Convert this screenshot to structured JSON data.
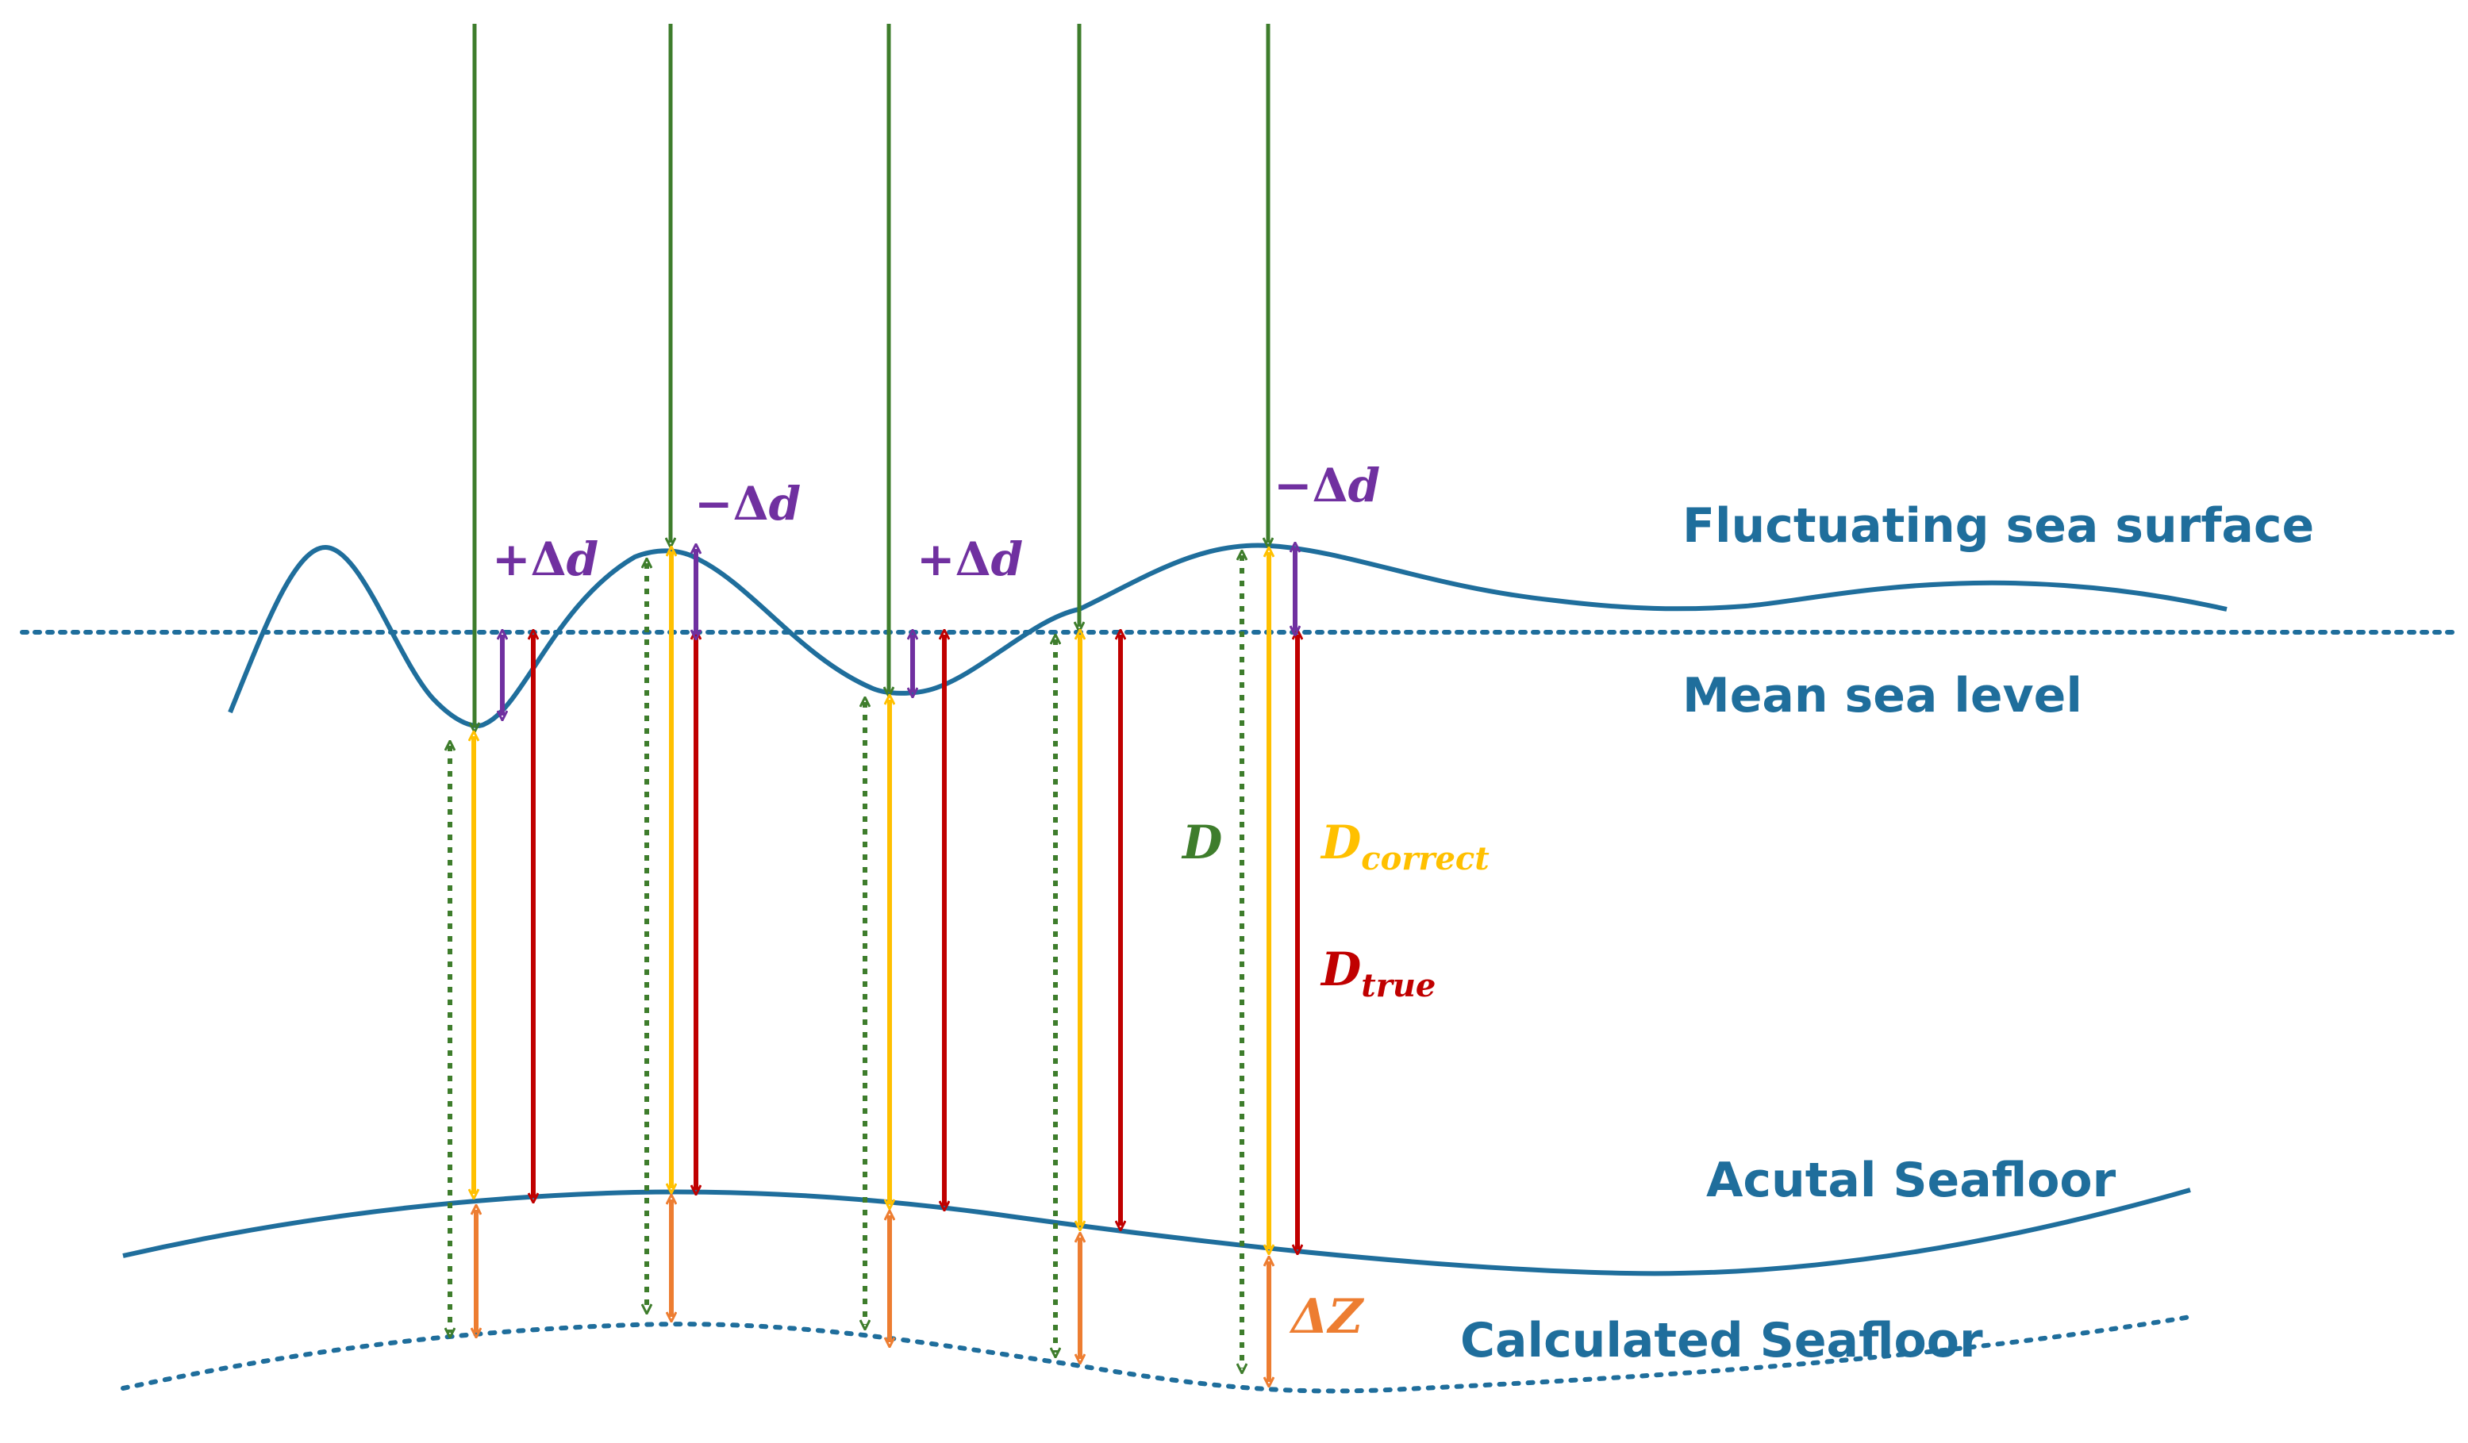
{
  "labels": {
    "surface": "Fluctuating sea surface",
    "msl": "Mean sea level",
    "actual": "Acutal Seafloor",
    "calculated": "Calculated Seafloor"
  },
  "symbols": {
    "plus_dd": "+Δ",
    "minus_dd": "−Δ",
    "d_var": "d",
    "D": "D",
    "D_correct": "D",
    "correct_sub": "correct",
    "D_true": "D",
    "true_sub": "true",
    "dZ": "ΔZ"
  },
  "colors": {
    "water": "#1f6e9c",
    "beam": "#3e7d2c",
    "correct": "#ffc000",
    "true": "#c00000",
    "delta_d": "#7030a0",
    "delta_z": "#ed7d31",
    "label": "#1f6e9c"
  }
}
